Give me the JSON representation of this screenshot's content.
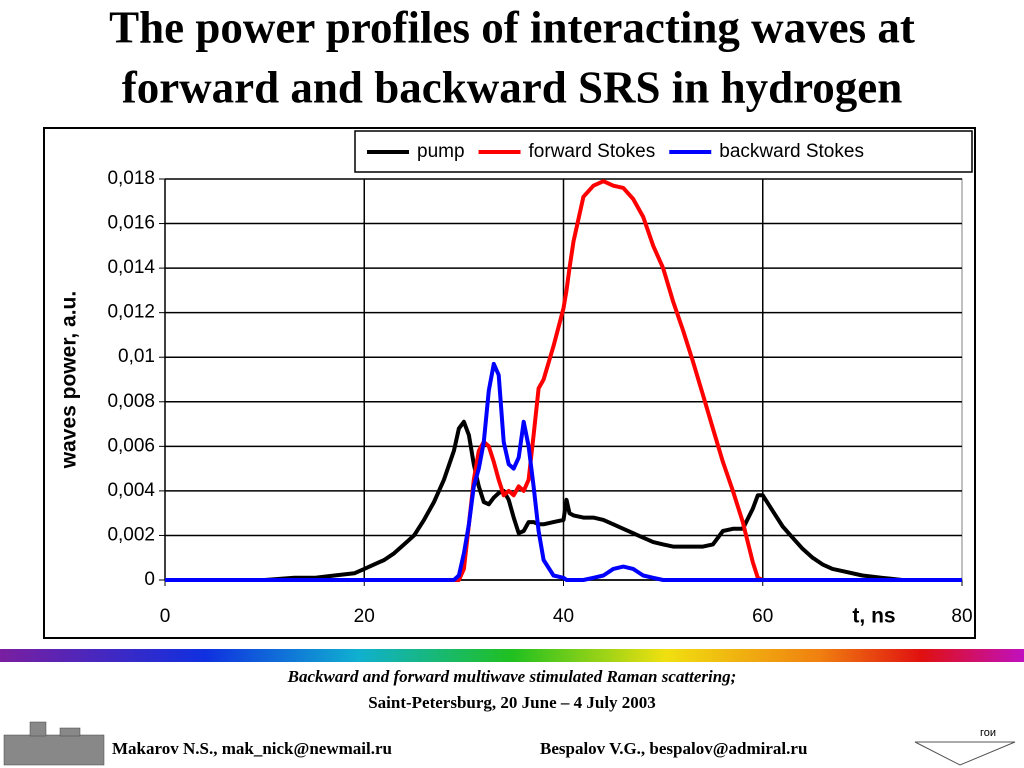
{
  "title_lines": [
    "The power profiles of interacting waves at",
    "forward and backward SRS in hydrogen"
  ],
  "chart_data": {
    "type": "line",
    "x_label": "t, ns",
    "y_label": "waves power, a.u.",
    "x": [
      0,
      5,
      10,
      13,
      15,
      17,
      19,
      20,
      21,
      22,
      23,
      24,
      25,
      26,
      27,
      28,
      29,
      29.5,
      30,
      30.5,
      31,
      31.5,
      32,
      32.5,
      33,
      33.5,
      34,
      34.5,
      35,
      35.5,
      36,
      36.5,
      37,
      37.5,
      38,
      39,
      40,
      40.3,
      40.6,
      41,
      42,
      43,
      44,
      45,
      46,
      47,
      48,
      49,
      50,
      51,
      52,
      53,
      54,
      55,
      56,
      57,
      58,
      59,
      59.5,
      60,
      61,
      62,
      63,
      64,
      65,
      66,
      67,
      68,
      70,
      72,
      74,
      76,
      80
    ],
    "series": [
      {
        "name": "pump",
        "color": "#000000",
        "values": [
          0,
          0,
          0,
          0.0001,
          0.0001,
          0.0002,
          0.0003,
          0.0005,
          0.0007,
          0.0009,
          0.0012,
          0.0016,
          0.002,
          0.0027,
          0.0035,
          0.0045,
          0.0058,
          0.0068,
          0.0071,
          0.0065,
          0.0052,
          0.0042,
          0.0035,
          0.0034,
          0.0037,
          0.0039,
          0.004,
          0.0036,
          0.0028,
          0.0021,
          0.0022,
          0.0026,
          0.0026,
          0.0025,
          0.0025,
          0.0026,
          0.0027,
          0.0036,
          0.003,
          0.0029,
          0.0028,
          0.0028,
          0.0027,
          0.0025,
          0.0023,
          0.0021,
          0.0019,
          0.0017,
          0.0016,
          0.0015,
          0.0015,
          0.0015,
          0.0015,
          0.0016,
          0.0022,
          0.0023,
          0.0023,
          0.0032,
          0.0038,
          0.0038,
          0.0031,
          0.0024,
          0.0019,
          0.0014,
          0.001,
          0.0007,
          0.0005,
          0.0004,
          0.0002,
          0.0001,
          0,
          0,
          0
        ]
      },
      {
        "name": "forward Stokes",
        "color": "#ff0000",
        "values": [
          0,
          0,
          0,
          0,
          0,
          0,
          0,
          0,
          0,
          0,
          0,
          0,
          0,
          0,
          0,
          0,
          0,
          0,
          0.0005,
          0.0025,
          0.0045,
          0.0058,
          0.0062,
          0.006,
          0.0053,
          0.0045,
          0.0038,
          0.004,
          0.0038,
          0.0042,
          0.004,
          0.0045,
          0.0065,
          0.0086,
          0.009,
          0.0105,
          0.0122,
          0.013,
          0.014,
          0.0152,
          0.0172,
          0.0177,
          0.0179,
          0.0177,
          0.0176,
          0.0171,
          0.0163,
          0.015,
          0.014,
          0.0125,
          0.0112,
          0.0098,
          0.0083,
          0.0068,
          0.0053,
          0.004,
          0.0026,
          0.0008,
          0.0001,
          0,
          0,
          0,
          0,
          0,
          0,
          0,
          0,
          0,
          0,
          0,
          0,
          0,
          0
        ]
      },
      {
        "name": "backward Stokes",
        "color": "#0000ff",
        "values": [
          0,
          0,
          0,
          0,
          0,
          0,
          0,
          0,
          0,
          0,
          0,
          0,
          0,
          0,
          0,
          0,
          0,
          0.0002,
          0.0012,
          0.0025,
          0.0042,
          0.005,
          0.0062,
          0.0085,
          0.0097,
          0.0092,
          0.0062,
          0.0052,
          0.005,
          0.0055,
          0.0071,
          0.006,
          0.0042,
          0.0022,
          0.0009,
          0.0002,
          0.0001,
          0,
          0,
          0,
          0,
          0.0001,
          0.0002,
          0.0005,
          0.0006,
          0.0005,
          0.0002,
          0.0001,
          0,
          0,
          0,
          0,
          0,
          0,
          0,
          0,
          0,
          0,
          0,
          0,
          0,
          0,
          0,
          0,
          0,
          0,
          0,
          0,
          0,
          0,
          0,
          0,
          0
        ]
      }
    ],
    "xlim": [
      0,
      80
    ],
    "xticks": [
      0,
      20,
      40,
      60,
      80
    ],
    "ylim": [
      0,
      0.018
    ],
    "yticks": [
      0,
      {
        "value": 0.002,
        "label": "0,002"
      },
      {
        "value": 0.004,
        "label": "0,004"
      },
      {
        "value": 0.006,
        "label": "0,006"
      },
      {
        "value": 0.008,
        "label": "0,008"
      },
      {
        "value": 0.01,
        "label": "0,01"
      },
      {
        "value": 0.012,
        "label": "0,012"
      },
      {
        "value": 0.014,
        "label": "0,014"
      },
      {
        "value": 0.016,
        "label": "0,016"
      },
      {
        "value": 0.018,
        "label": "0,018"
      }
    ],
    "grid": true,
    "legend": "top-right"
  },
  "footer": {
    "conference": [
      "Backward and forward multiwave stimulated Raman scattering;",
      "Saint-Petersburg, 20 June – 4 July 2003"
    ],
    "author_left": "Makarov N.S., mak_nick@newmail.ru",
    "author_right": "Bespalov V.G., bespalov@admiral.ru",
    "logo": "гои"
  }
}
